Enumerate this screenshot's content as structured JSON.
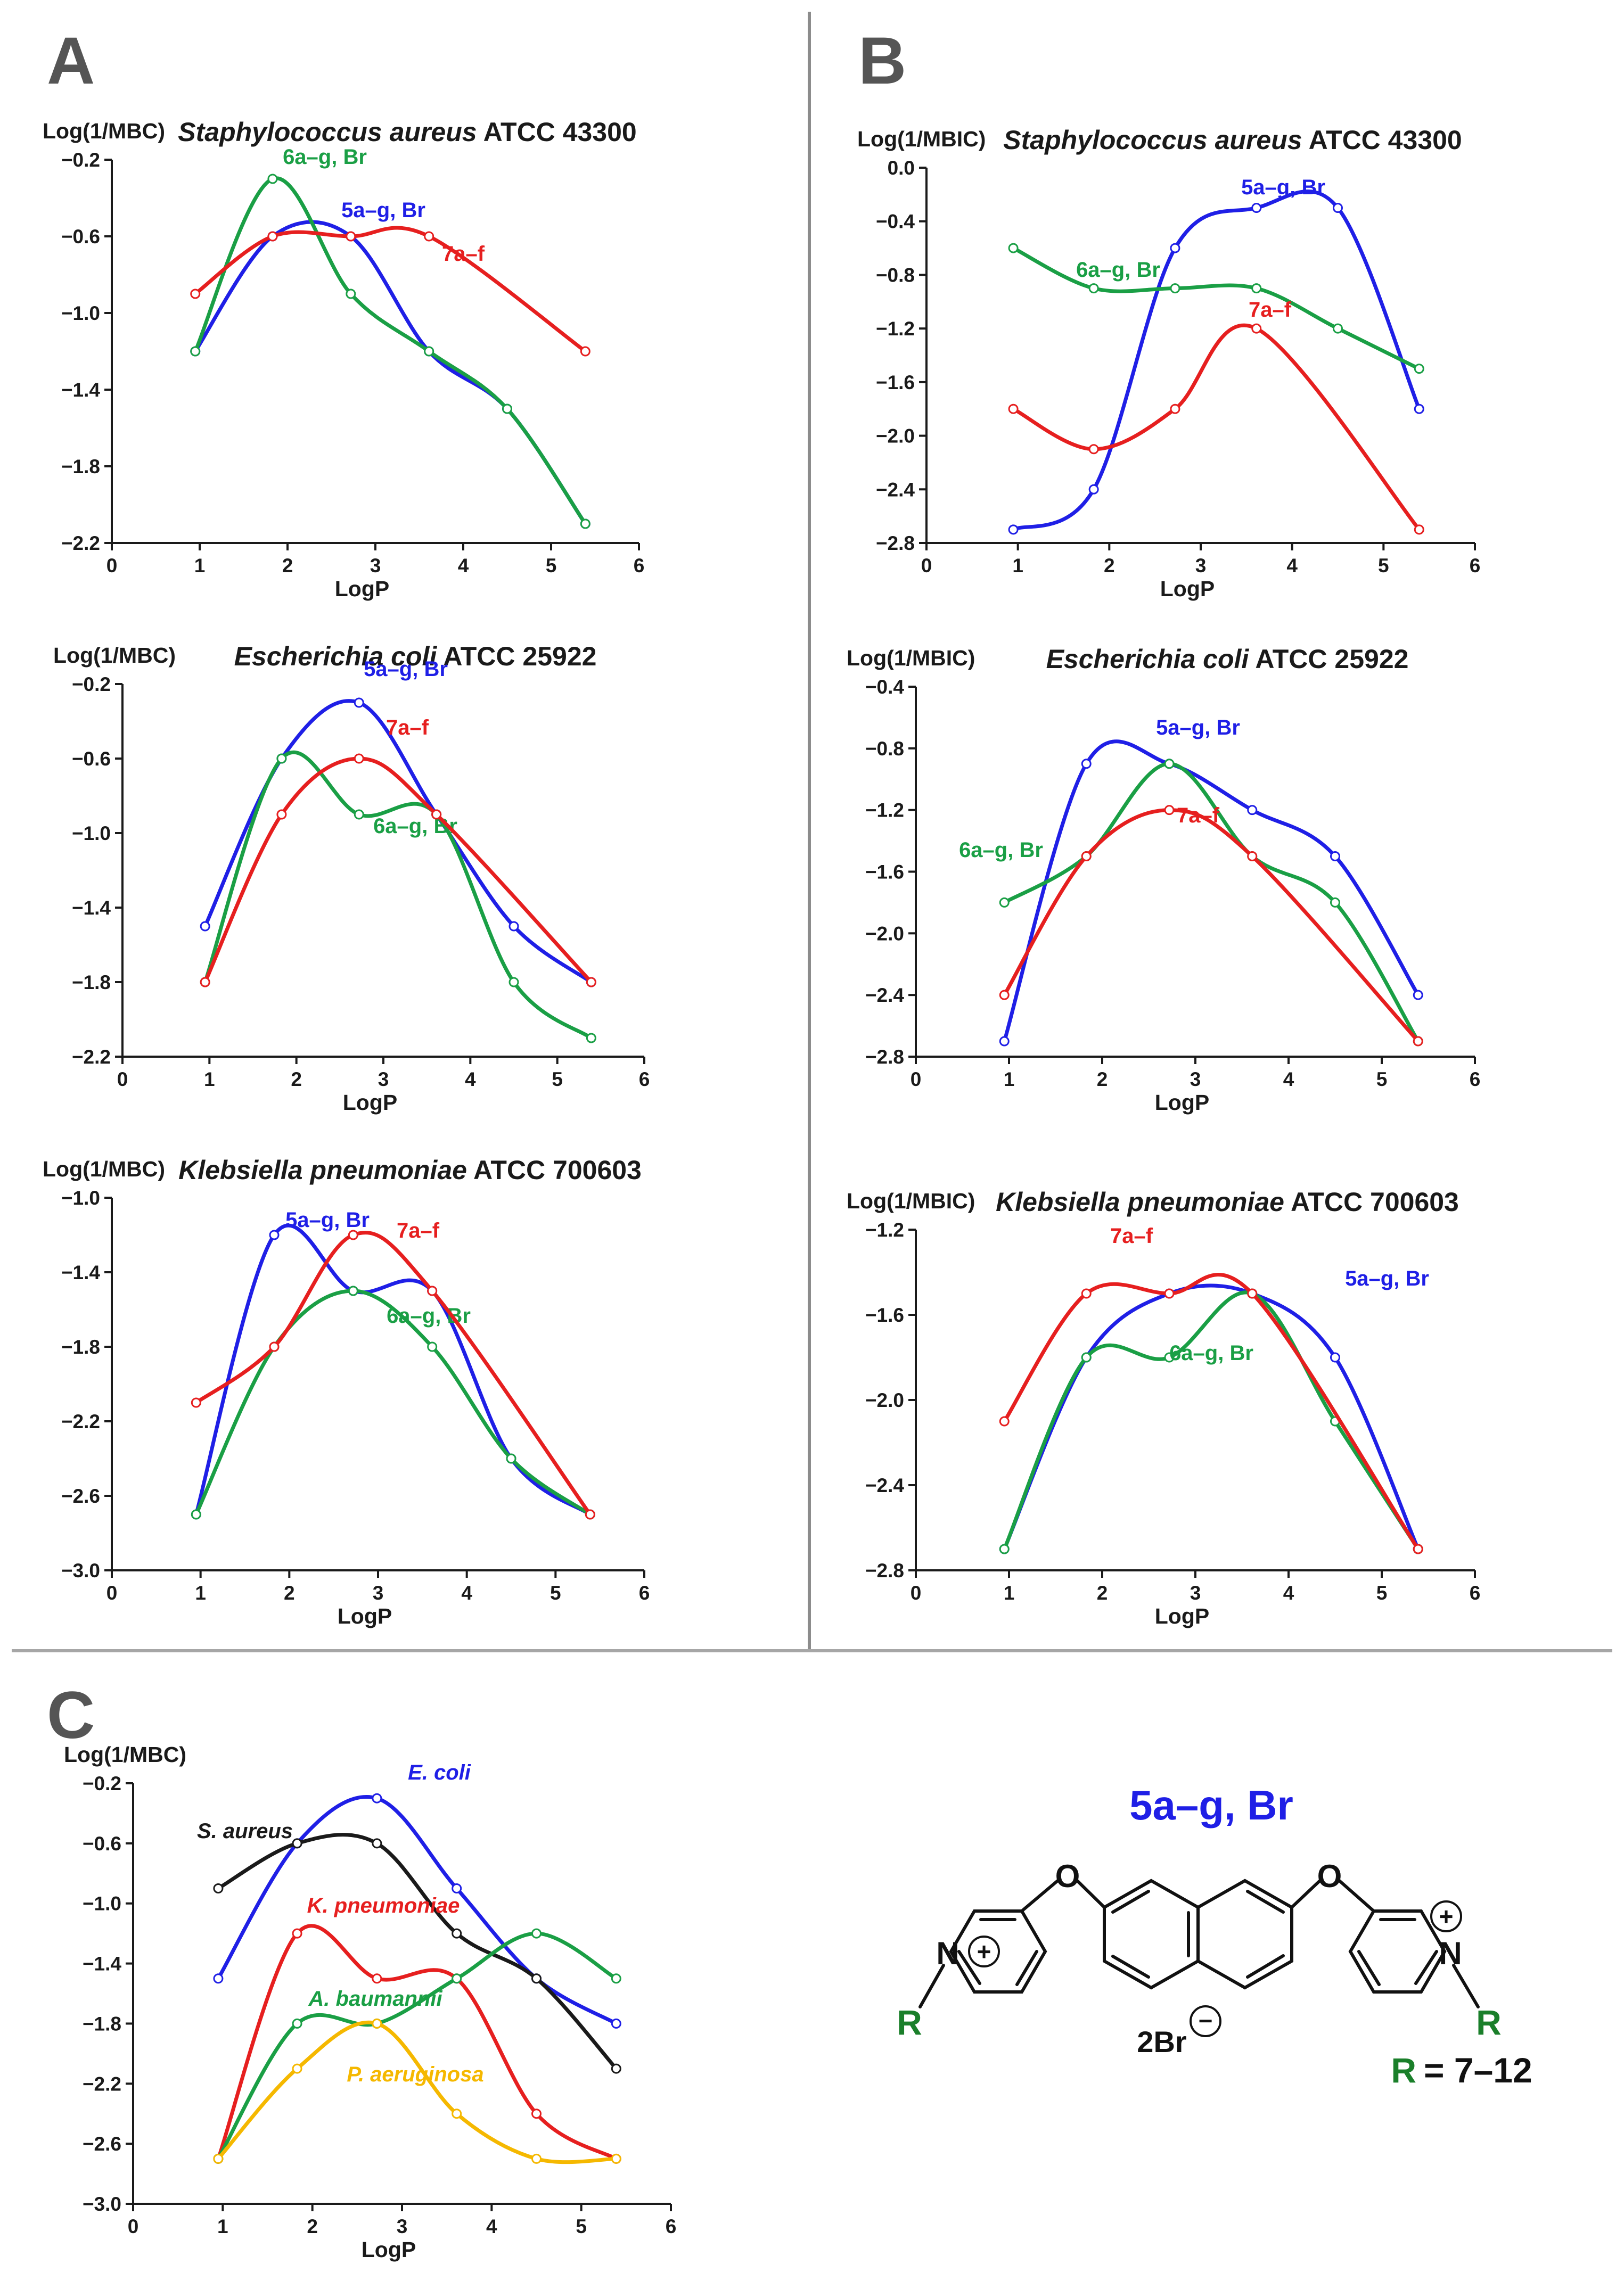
{
  "panel_labels": {
    "a": "A",
    "b": "B",
    "c": "C"
  },
  "chart_data": [
    {
      "id": "a1",
      "type": "line",
      "title_italic": "Staphylococcus aureus",
      "title_rest": " ATCC 43300",
      "ylabel": "Log(1/MBC)",
      "xlabel": "LogP",
      "xlim": [
        0,
        6
      ],
      "ylim": [
        -2.2,
        -0.2
      ],
      "ystep": 0.4,
      "series": [
        {
          "name": "5a–g, Br",
          "color": "#1f1fe6",
          "x": [
            0.95,
            1.83,
            2.72,
            3.61,
            4.5,
            5.39
          ],
          "y": [
            -1.2,
            -0.6,
            -0.6,
            -1.2,
            -1.5,
            -2.1
          ]
        },
        {
          "name": "6a–g, Br",
          "color": "#1a9f45",
          "x": [
            0.95,
            1.83,
            2.72,
            3.61,
            4.5,
            5.39
          ],
          "y": [
            -1.2,
            -0.3,
            -0.9,
            -1.2,
            -1.5,
            -2.1
          ]
        },
        {
          "name": "7a–f",
          "color": "#e61f1f",
          "x": [
            0.95,
            1.83,
            2.72,
            3.61,
            5.39
          ],
          "y": [
            -0.9,
            -0.6,
            -0.6,
            -0.6,
            -1.2
          ]
        }
      ]
    },
    {
      "id": "a2",
      "type": "line",
      "title_italic": "Escherichia coli",
      "title_rest": "  ATCC 25922",
      "ylabel": "Log(1/MBC)",
      "xlabel": "LogP",
      "xlim": [
        0,
        6
      ],
      "ylim": [
        -2.2,
        -0.2
      ],
      "ystep": 0.4,
      "series": [
        {
          "name": "5a–g, Br",
          "color": "#1f1fe6",
          "x": [
            0.95,
            1.83,
            2.72,
            3.61,
            4.5,
            5.39
          ],
          "y": [
            -1.5,
            -0.6,
            -0.3,
            -0.9,
            -1.5,
            -1.8
          ]
        },
        {
          "name": "6a–g, Br",
          "color": "#1a9f45",
          "x": [
            0.95,
            1.83,
            2.72,
            3.61,
            4.5,
            5.39
          ],
          "y": [
            -1.8,
            -0.6,
            -0.9,
            -0.9,
            -1.8,
            -2.1
          ]
        },
        {
          "name": "7a–f",
          "color": "#e61f1f",
          "x": [
            0.95,
            1.83,
            2.72,
            3.61,
            5.39
          ],
          "y": [
            -1.8,
            -0.9,
            -0.6,
            -0.9,
            -1.8
          ]
        }
      ]
    },
    {
      "id": "a3",
      "type": "line",
      "title_italic": "Klebsiella pneumoniae",
      "title_rest": " ATCC 700603",
      "ylabel": "Log(1/MBC)",
      "xlabel": "LogP",
      "xlim": [
        0,
        6
      ],
      "ylim": [
        -3.0,
        -1.0
      ],
      "ystep": 0.4,
      "series": [
        {
          "name": "5a–g, Br",
          "color": "#1f1fe6",
          "x": [
            0.95,
            1.83,
            2.72,
            3.61,
            4.5,
            5.39
          ],
          "y": [
            -2.7,
            -1.2,
            -1.5,
            -1.5,
            -2.4,
            -2.7
          ]
        },
        {
          "name": "6a–g, Br",
          "color": "#1a9f45",
          "x": [
            0.95,
            1.83,
            2.72,
            3.61,
            4.5,
            5.39
          ],
          "y": [
            -2.7,
            -1.8,
            -1.5,
            -1.8,
            -2.4,
            -2.7
          ]
        },
        {
          "name": "7a–f",
          "color": "#e61f1f",
          "x": [
            0.95,
            1.83,
            2.72,
            3.61,
            5.39
          ],
          "y": [
            -2.1,
            -1.8,
            -1.2,
            -1.5,
            -2.7
          ]
        }
      ]
    },
    {
      "id": "b1",
      "type": "line",
      "title_italic": "Staphylococcus aureus",
      "title_rest": " ATCC 43300",
      "ylabel": "Log(1/MBIC)",
      "xlabel": "LogP",
      "xlim": [
        0,
        6
      ],
      "ylim": [
        -2.8,
        0.0
      ],
      "ystep": 0.4,
      "series": [
        {
          "name": "5a–g, Br",
          "color": "#1f1fe6",
          "x": [
            0.95,
            1.83,
            2.72,
            3.61,
            4.5,
            5.39
          ],
          "y": [
            -2.7,
            -2.4,
            -0.6,
            -0.3,
            -0.3,
            -1.8
          ]
        },
        {
          "name": "6a–g, Br",
          "color": "#1a9f45",
          "x": [
            0.95,
            1.83,
            2.72,
            3.61,
            4.5,
            5.39
          ],
          "y": [
            -0.6,
            -0.9,
            -0.9,
            -0.9,
            -1.2,
            -1.5
          ]
        },
        {
          "name": "7a–f",
          "color": "#e61f1f",
          "x": [
            0.95,
            1.83,
            2.72,
            3.61,
            5.39
          ],
          "y": [
            -1.8,
            -2.1,
            -1.8,
            -1.2,
            -2.7
          ]
        }
      ]
    },
    {
      "id": "b2",
      "type": "line",
      "title_italic": "Escherichia coli",
      "title_rest": "  ATCC 25922",
      "ylabel": "Log(1/MBIC)",
      "xlabel": "LogP",
      "xlim": [
        0,
        6
      ],
      "ylim": [
        -2.8,
        -0.4
      ],
      "ystep": 0.4,
      "series": [
        {
          "name": "5a–g, Br",
          "color": "#1f1fe6",
          "x": [
            0.95,
            1.83,
            2.72,
            3.61,
            4.5,
            5.39
          ],
          "y": [
            -2.7,
            -0.9,
            -0.9,
            -1.2,
            -1.5,
            -2.4
          ]
        },
        {
          "name": "6a–g, Br",
          "color": "#1a9f45",
          "x": [
            0.95,
            1.83,
            2.72,
            3.61,
            4.5,
            5.39
          ],
          "y": [
            -1.8,
            -1.5,
            -0.9,
            -1.5,
            -1.8,
            -2.7
          ]
        },
        {
          "name": "7a–f",
          "color": "#e61f1f",
          "x": [
            0.95,
            1.83,
            2.72,
            3.61,
            5.39
          ],
          "y": [
            -2.4,
            -1.5,
            -1.2,
            -1.5,
            -2.7
          ]
        }
      ]
    },
    {
      "id": "b3",
      "type": "line",
      "title_italic": "Klebsiella pneumoniae",
      "title_rest": " ATCC 700603",
      "ylabel": "Log(1/MBIC)",
      "xlabel": "LogP",
      "xlim": [
        0,
        6
      ],
      "ylim": [
        -2.8,
        -1.2
      ],
      "ystep": 0.4,
      "series": [
        {
          "name": "5a–g, Br",
          "color": "#1f1fe6",
          "x": [
            0.95,
            1.83,
            2.72,
            3.61,
            4.5,
            5.39
          ],
          "y": [
            -2.7,
            -1.8,
            -1.5,
            -1.5,
            -1.8,
            -2.7
          ]
        },
        {
          "name": "6a–g, Br",
          "color": "#1a9f45",
          "x": [
            0.95,
            1.83,
            2.72,
            3.61,
            4.5,
            5.39
          ],
          "y": [
            -2.7,
            -1.8,
            -1.8,
            -1.5,
            -2.1,
            -2.7
          ]
        },
        {
          "name": "7a–f",
          "color": "#e61f1f",
          "x": [
            0.95,
            1.83,
            2.72,
            3.61,
            5.39
          ],
          "y": [
            -2.1,
            -1.5,
            -1.5,
            -1.5,
            -2.7
          ]
        }
      ]
    },
    {
      "id": "c1",
      "type": "line",
      "title_italic": "",
      "title_rest": "",
      "ylabel": "Log(1/MBC)",
      "xlabel": "LogP",
      "xlim": [
        0,
        6
      ],
      "ylim": [
        -3.0,
        -0.2
      ],
      "ystep": 0.4,
      "series": [
        {
          "name": "E. coli",
          "color": "#1f1fe6",
          "x": [
            0.95,
            1.83,
            2.72,
            3.61,
            4.5,
            5.39
          ],
          "y": [
            -1.5,
            -0.6,
            -0.3,
            -0.9,
            -1.5,
            -1.8
          ]
        },
        {
          "name": "S. aureus",
          "color": "#1a1a1a",
          "x": [
            0.95,
            1.83,
            2.72,
            3.61,
            4.5,
            5.39
          ],
          "y": [
            -0.9,
            -0.6,
            -0.6,
            -1.2,
            -1.5,
            -2.1
          ]
        },
        {
          "name": "K. pneumoniae",
          "color": "#e61f1f",
          "x": [
            0.95,
            1.83,
            2.72,
            3.61,
            4.5,
            5.39
          ],
          "y": [
            -2.7,
            -1.2,
            -1.5,
            -1.5,
            -2.4,
            -2.7
          ]
        },
        {
          "name": "A. baumannii",
          "color": "#1a9f45",
          "x": [
            0.95,
            1.83,
            2.72,
            3.61,
            4.5,
            5.39
          ],
          "y": [
            -2.7,
            -1.8,
            -1.8,
            -1.5,
            -1.2,
            -1.5
          ]
        },
        {
          "name": "P. aeruginosa",
          "color": "#f5b800",
          "x": [
            0.95,
            1.83,
            2.72,
            3.61,
            4.5,
            5.39
          ],
          "y": [
            -2.7,
            -2.1,
            -1.8,
            -2.4,
            -2.7,
            -2.7
          ]
        }
      ]
    }
  ],
  "structure": {
    "name": "5a–g, Br",
    "oxygen": "O",
    "nitrogen": "N",
    "plus": "+",
    "minus": "−",
    "r_group": "R",
    "counterion": "2Br",
    "r_equals": "= 7–12",
    "colors": {
      "name": "#1f1fe6",
      "r": "#1a7f2a",
      "bond": "#111111"
    }
  }
}
